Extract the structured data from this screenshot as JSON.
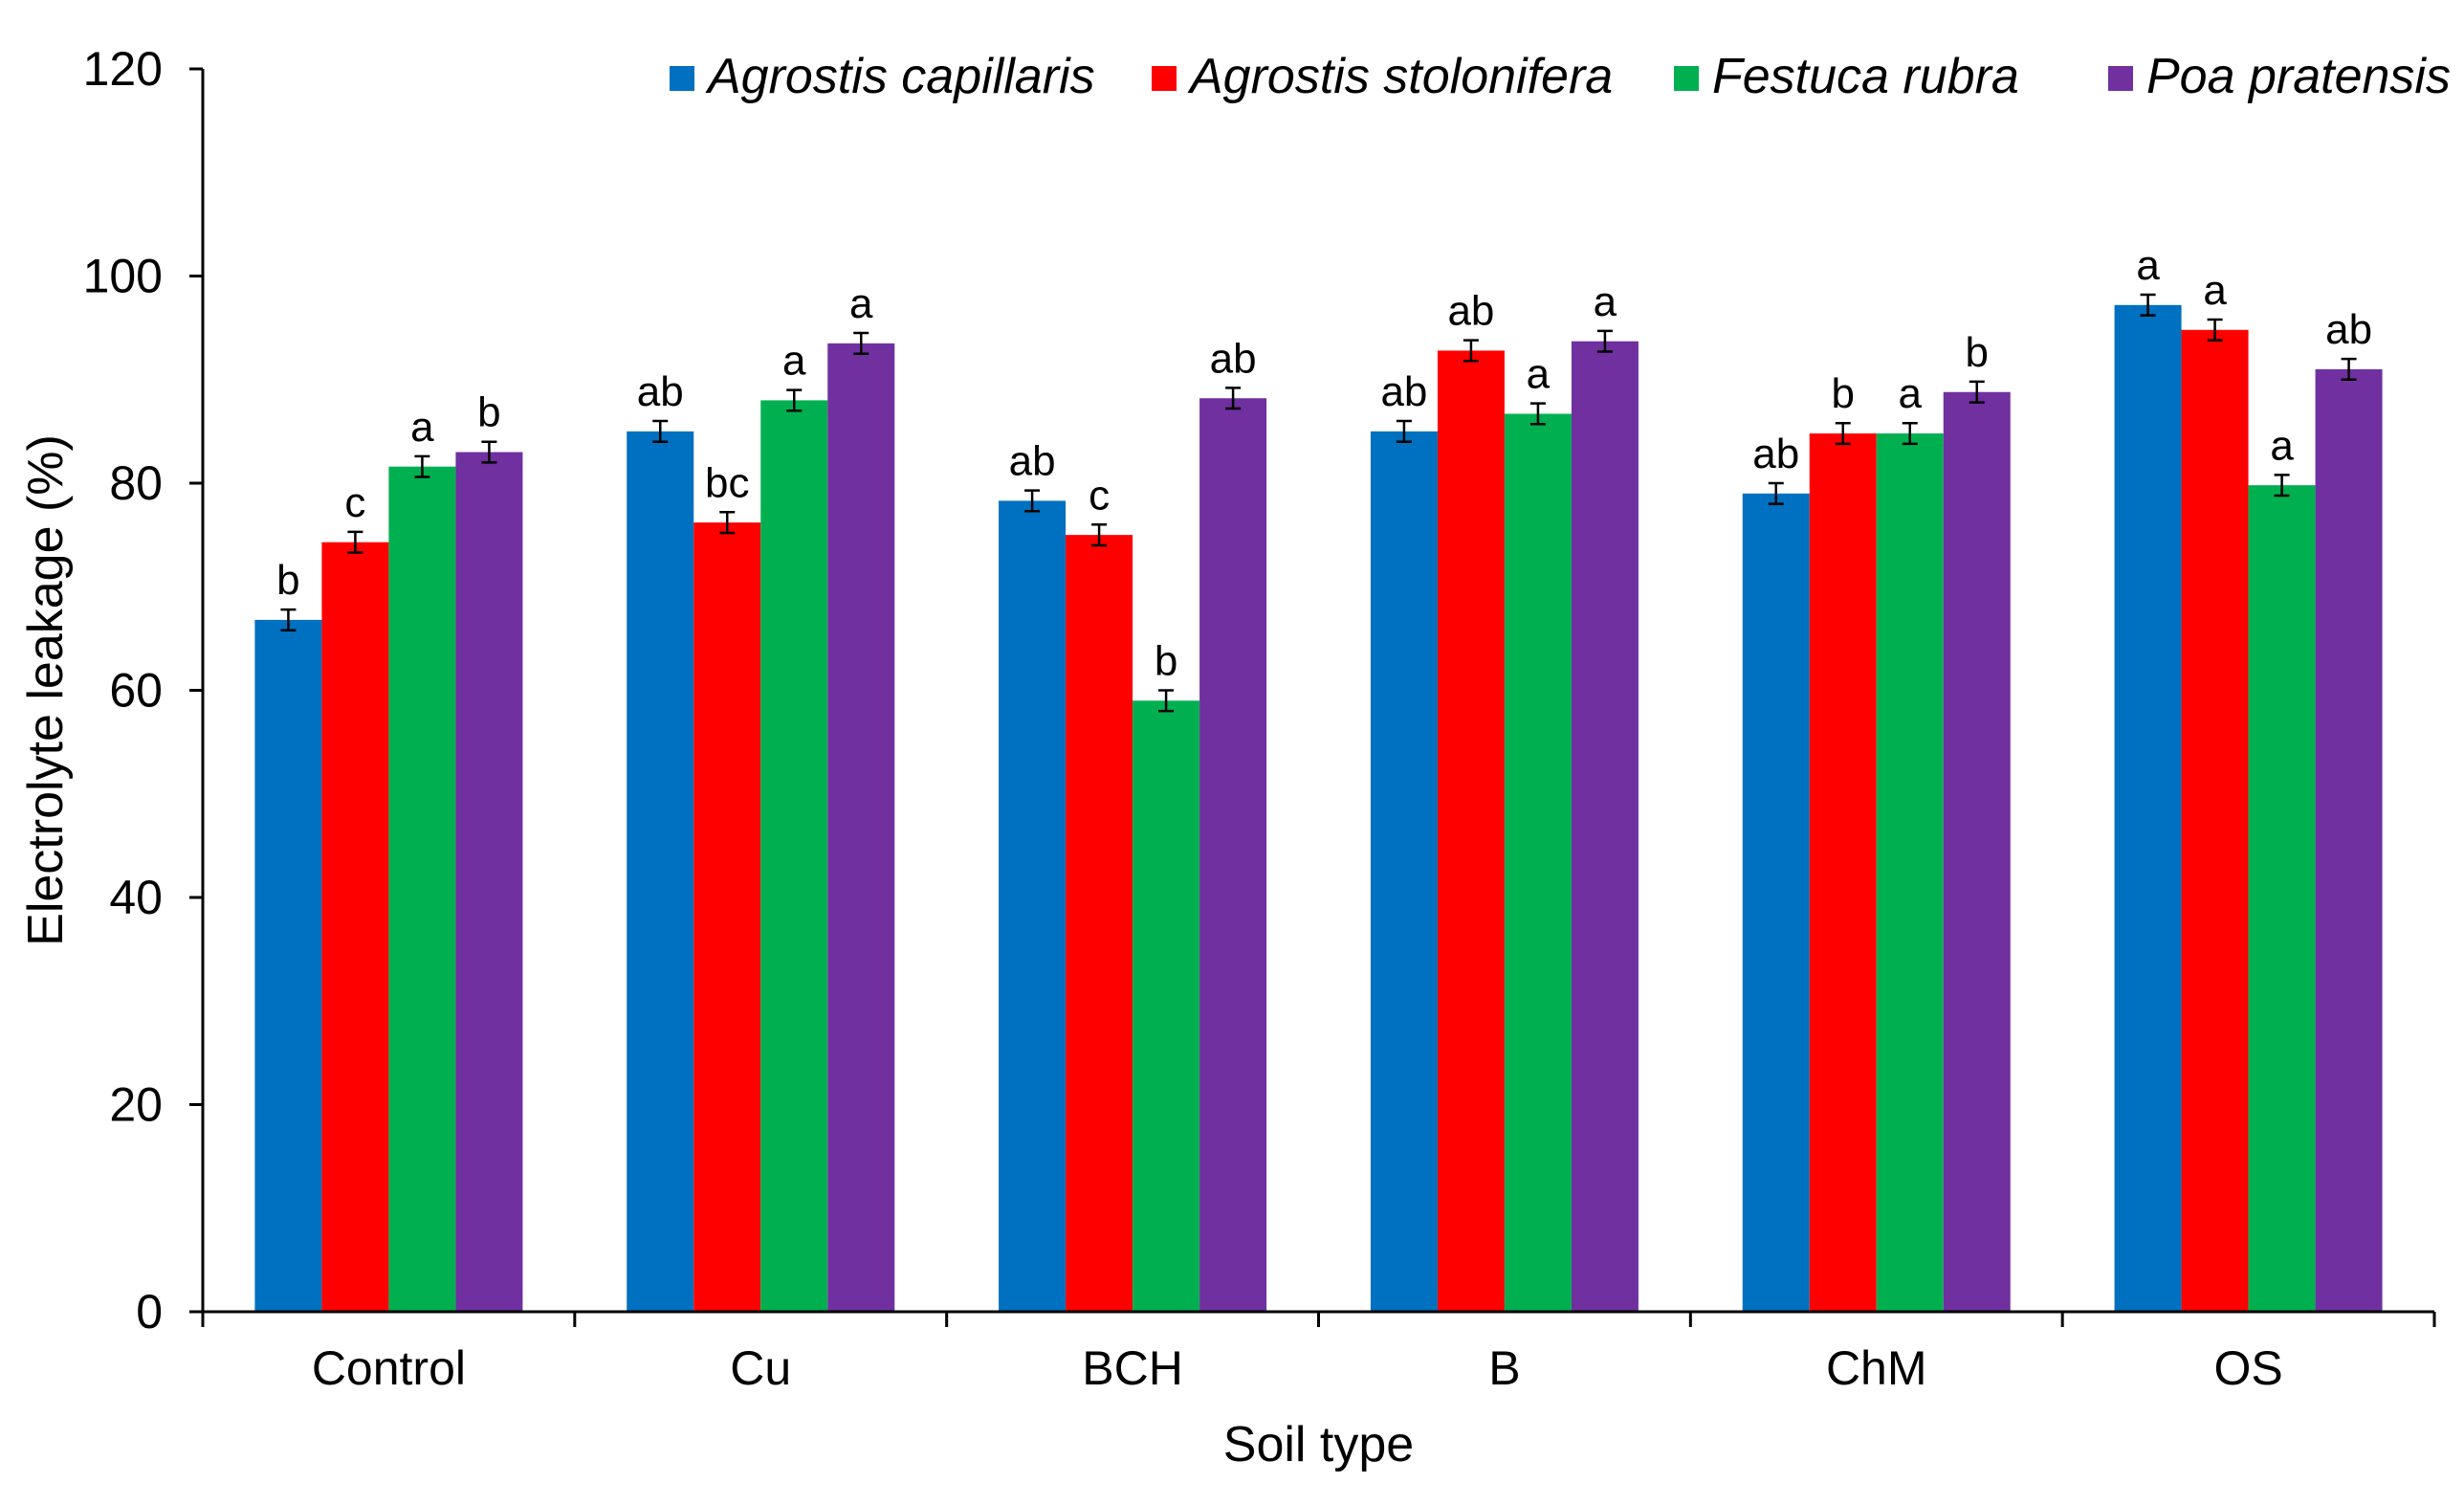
{
  "chart_data": {
    "type": "bar",
    "title": "",
    "xlabel": "Soil type",
    "ylabel": "Electrolyte leakage (%)",
    "ylim": [
      0,
      120
    ],
    "yticks": [
      0,
      20,
      40,
      60,
      80,
      100,
      120
    ],
    "grid": false,
    "legend_position": "top-right",
    "categories": [
      "Control",
      "Cu",
      "BCH",
      "B",
      "ChM",
      "OS"
    ],
    "series": [
      {
        "name": "Agrostis capillaris",
        "color": "#0070C0",
        "values": [
          66.8,
          85.0,
          78.3,
          85.0,
          79.0,
          97.2
        ],
        "errors": [
          1.0,
          1.0,
          1.0,
          1.0,
          1.0,
          1.0
        ],
        "letters": [
          "b",
          "ab",
          "ab",
          "ab",
          "ab",
          "a"
        ]
      },
      {
        "name": "Agrostis stolonifera",
        "color": "#FF0000",
        "values": [
          74.3,
          76.2,
          75.0,
          92.8,
          84.8,
          94.8
        ],
        "errors": [
          1.0,
          1.0,
          1.0,
          1.0,
          1.0,
          1.0
        ],
        "letters": [
          "c",
          "bc",
          "c",
          "ab",
          "b",
          "a"
        ]
      },
      {
        "name": "Festuca rubra",
        "color": "#00B050",
        "values": [
          81.6,
          88.0,
          59.0,
          86.7,
          84.8,
          79.8
        ],
        "errors": [
          1.0,
          1.0,
          1.0,
          1.0,
          1.0,
          1.0
        ],
        "letters": [
          "a",
          "a",
          "b",
          "a",
          "a",
          "a"
        ]
      },
      {
        "name": "Poa pratensis",
        "color": "#7030A0",
        "values": [
          83.0,
          93.5,
          88.2,
          93.7,
          88.8,
          91.0
        ],
        "errors": [
          1.0,
          1.0,
          1.0,
          1.0,
          1.0,
          1.0
        ],
        "letters": [
          "b",
          "a",
          "ab",
          "a",
          "b",
          "ab"
        ]
      }
    ]
  }
}
